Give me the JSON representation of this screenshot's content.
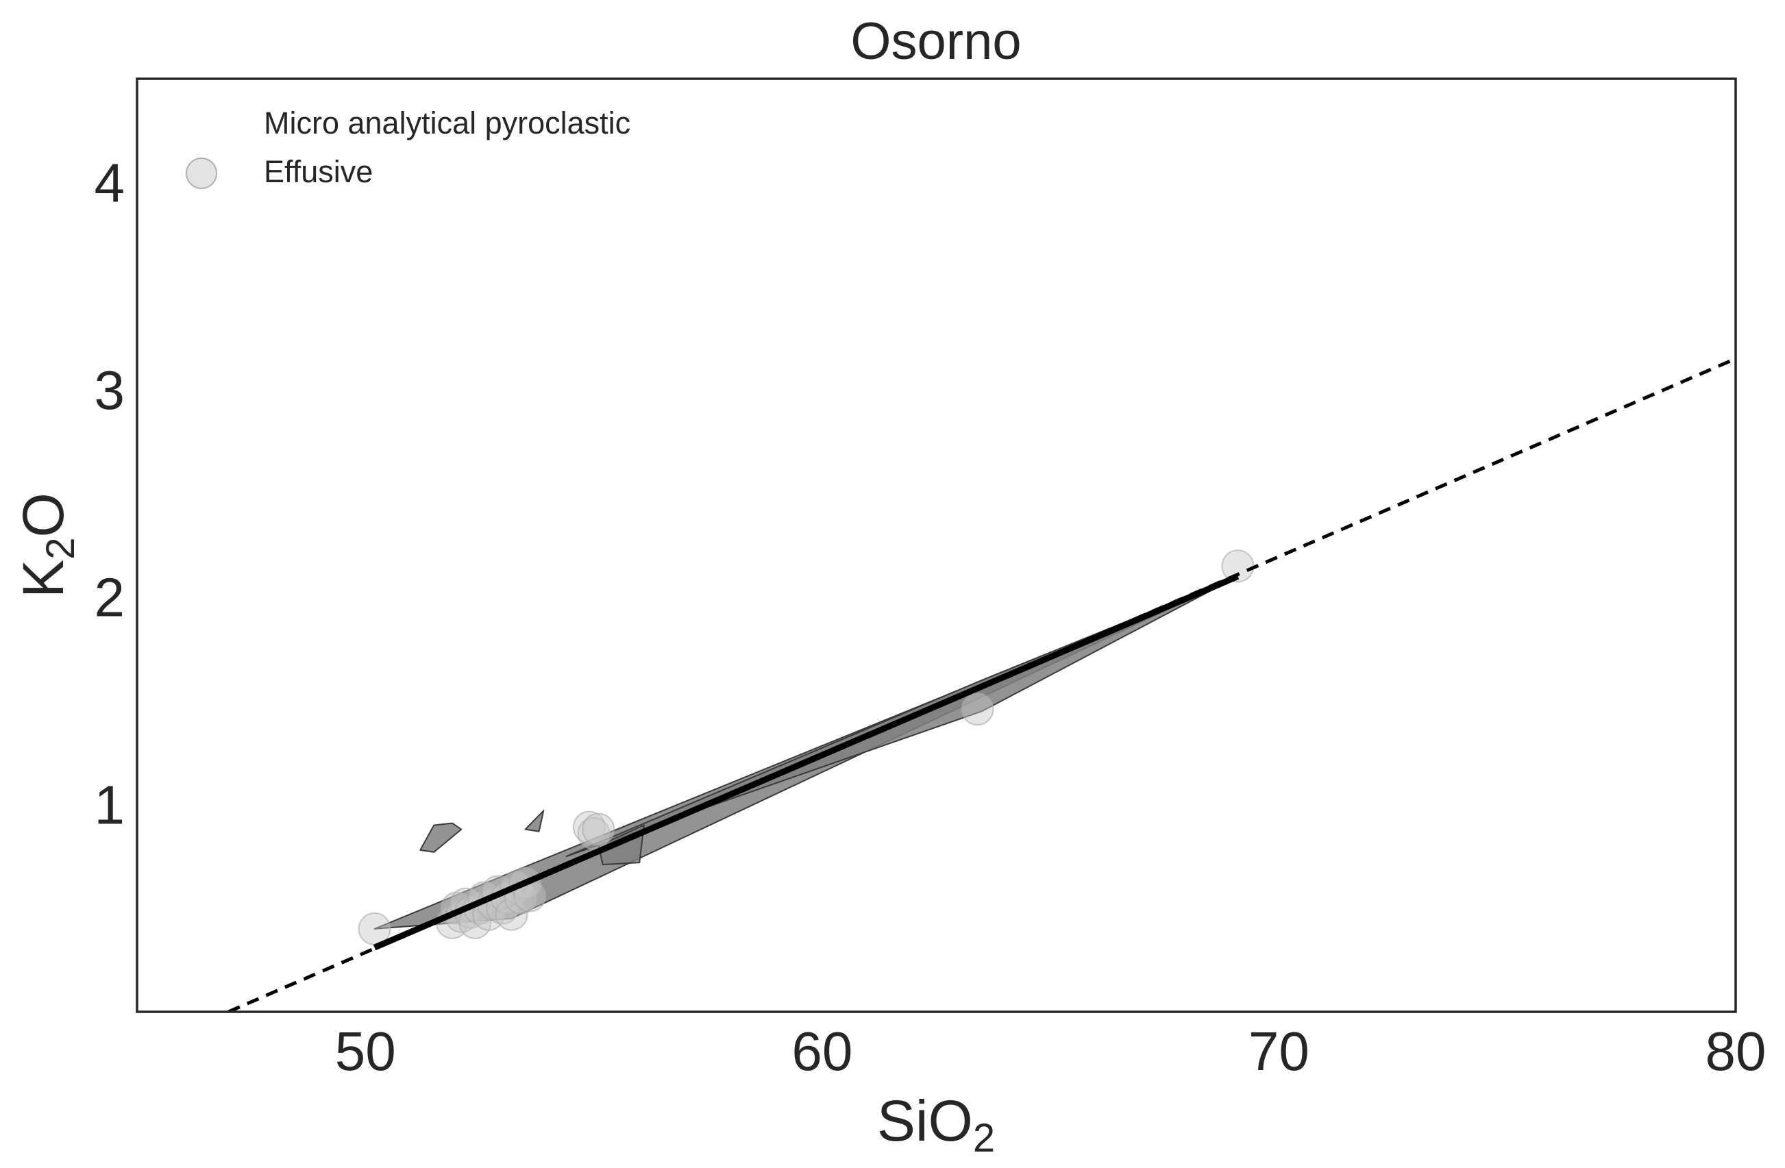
{
  "chart_data": {
    "type": "scatter",
    "title": "Osorno",
    "xlabel": {
      "base": "SiO",
      "sub": "2"
    },
    "ylabel": {
      "base": "K",
      "sub": "2",
      "rest": "O"
    },
    "xlim": [
      45,
      80
    ],
    "ylim": [
      0,
      4.5
    ],
    "xticks": [
      50,
      60,
      70,
      80
    ],
    "yticks": [
      1,
      2,
      3,
      4
    ],
    "grid": false,
    "legend": {
      "placement": "top-left",
      "entries": [
        "Micro analytical pyroclastic",
        "Effusive"
      ]
    },
    "colors": {
      "axes": "#262626",
      "polygon_fill": "#808080",
      "polygon_edge": "#3a3a3a",
      "marker": "#c8c8c8",
      "line": "#000000"
    },
    "series": [
      {
        "name": "Micro analytical pyroclastic",
        "kind": "polygon",
        "polygons": [
          [
            [
              50.2,
              0.4
            ],
            [
              53.5,
              0.7
            ],
            [
              69.1,
              2.1
            ],
            [
              53.2,
              0.45
            ],
            [
              50.2,
              0.4
            ]
          ],
          [
            [
              54.4,
              0.75
            ],
            [
              63.5,
              1.6
            ],
            [
              69.1,
              2.1
            ],
            [
              63.5,
              1.45
            ],
            [
              54.4,
              0.75
            ]
          ],
          [
            [
              55.1,
              0.8
            ],
            [
              56.1,
              0.9
            ],
            [
              56.0,
              0.72
            ],
            [
              55.2,
              0.71
            ],
            [
              55.1,
              0.8
            ]
          ],
          [
            [
              51.2,
              0.78
            ],
            [
              51.5,
              0.9
            ],
            [
              51.9,
              0.91
            ],
            [
              52.1,
              0.88
            ],
            [
              51.5,
              0.77
            ],
            [
              51.2,
              0.78
            ]
          ],
          [
            [
              53.5,
              0.88
            ],
            [
              53.9,
              0.97
            ],
            [
              53.8,
              0.87
            ],
            [
              53.5,
              0.88
            ]
          ],
          [
            [
              51.9,
              0.47
            ],
            [
              52.3,
              0.52
            ],
            [
              53.0,
              0.58
            ],
            [
              53.6,
              0.62
            ],
            [
              53.3,
              0.52
            ],
            [
              52.4,
              0.44
            ],
            [
              51.9,
              0.47
            ]
          ]
        ]
      },
      {
        "name": "Effusive",
        "kind": "scatter",
        "x": [
          50.2,
          51.9,
          52.0,
          52.1,
          52.2,
          52.3,
          52.4,
          52.5,
          52.6,
          52.7,
          52.8,
          52.9,
          53.0,
          53.1,
          53.2,
          53.3,
          53.4,
          53.5,
          53.6,
          54.9,
          55.0,
          55.1,
          63.4,
          69.1
        ],
        "y": [
          0.4,
          0.43,
          0.5,
          0.46,
          0.52,
          0.48,
          0.43,
          0.5,
          0.55,
          0.47,
          0.52,
          0.58,
          0.5,
          0.55,
          0.47,
          0.6,
          0.55,
          0.62,
          0.56,
          0.89,
          0.86,
          0.88,
          1.46,
          2.15
        ]
      },
      {
        "kind": "line",
        "style": "solid",
        "x": [
          50.2,
          69.1
        ],
        "y": [
          0.31,
          2.1
        ]
      },
      {
        "kind": "line",
        "style": "dashed",
        "x": [
          47.0,
          80.0
        ],
        "y": [
          0.0,
          3.15
        ]
      }
    ]
  }
}
